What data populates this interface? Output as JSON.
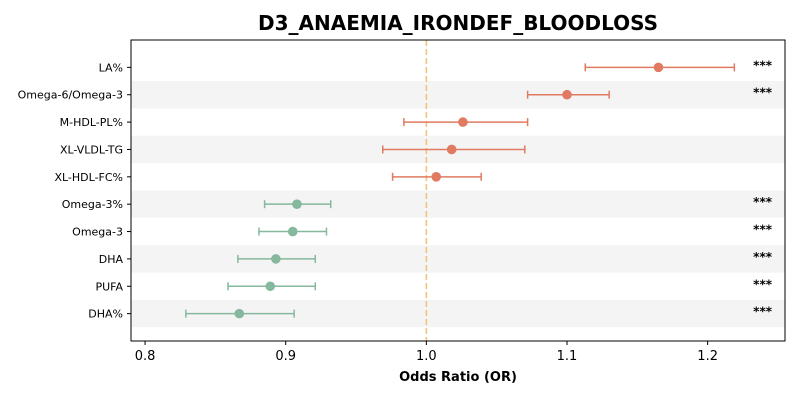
{
  "chart_data": {
    "type": "forest",
    "title": "D3_ANAEMIA_IRONDEF_BLOODLOSS",
    "xlabel": "Odds Ratio (OR)",
    "xlim": [
      0.79,
      1.255
    ],
    "xticks": [
      "0.8",
      "0.9",
      "1.0",
      "1.1",
      "1.2"
    ],
    "reference_line": 1.0,
    "reference_color": "#f5c27a",
    "colors": {
      "risk": "#e07b62",
      "protective": "#86b89d"
    },
    "stripe_color": "#f4f4f4",
    "rows": [
      {
        "label": "LA%",
        "or": 1.165,
        "lo": 1.113,
        "hi": 1.219,
        "sig": "***",
        "group": "risk"
      },
      {
        "label": "Omega-6/Omega-3",
        "or": 1.1,
        "lo": 1.072,
        "hi": 1.13,
        "sig": "***",
        "group": "risk"
      },
      {
        "label": "M-HDL-PL%",
        "or": 1.026,
        "lo": 0.984,
        "hi": 1.072,
        "sig": "",
        "group": "risk"
      },
      {
        "label": "XL-VLDL-TG",
        "or": 1.018,
        "lo": 0.969,
        "hi": 1.07,
        "sig": "",
        "group": "risk"
      },
      {
        "label": "XL-HDL-FC%",
        "or": 1.007,
        "lo": 0.976,
        "hi": 1.039,
        "sig": "",
        "group": "risk"
      },
      {
        "label": "Omega-3%",
        "or": 0.908,
        "lo": 0.885,
        "hi": 0.932,
        "sig": "***",
        "group": "protective"
      },
      {
        "label": "Omega-3",
        "or": 0.905,
        "lo": 0.881,
        "hi": 0.929,
        "sig": "***",
        "group": "protective"
      },
      {
        "label": "DHA",
        "or": 0.893,
        "lo": 0.866,
        "hi": 0.921,
        "sig": "***",
        "group": "protective"
      },
      {
        "label": "PUFA",
        "or": 0.889,
        "lo": 0.859,
        "hi": 0.921,
        "sig": "***",
        "group": "protective"
      },
      {
        "label": "DHA%",
        "or": 0.867,
        "lo": 0.829,
        "hi": 0.906,
        "sig": "***",
        "group": "protective"
      }
    ]
  }
}
